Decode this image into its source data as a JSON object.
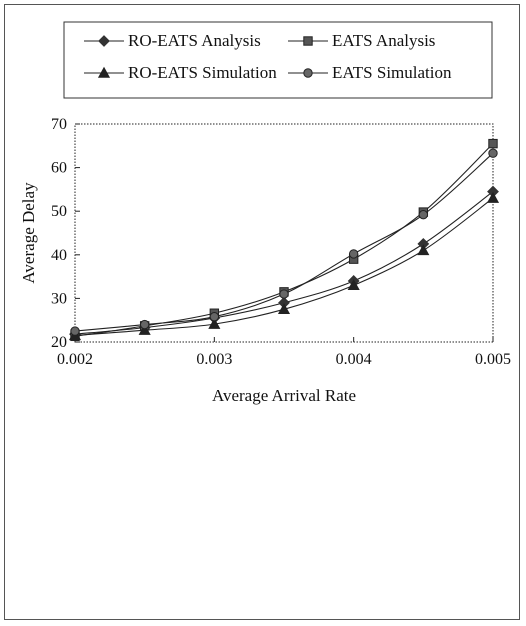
{
  "chart_data": {
    "type": "line",
    "title": "",
    "xlabel": "Average Arrival Rate",
    "ylabel": "Average Delay",
    "x": [
      0.002,
      0.0025,
      0.003,
      0.0035,
      0.004,
      0.0045,
      0.005
    ],
    "x_tick_labels": [
      "0.002",
      "0.003",
      "0.004",
      "0.005"
    ],
    "x_ticks": [
      0.002,
      0.003,
      0.004,
      0.005
    ],
    "y_tick_labels": [
      "20",
      "30",
      "40",
      "50",
      "60",
      "70"
    ],
    "y_ticks": [
      20,
      30,
      40,
      50,
      60,
      70
    ],
    "xlim": [
      0.002,
      0.005
    ],
    "ylim": [
      20,
      70
    ],
    "grid": false,
    "legend_placement": "top (above plot, boxed, 2 columns)",
    "series": [
      {
        "name": "RO-EATS Analysis",
        "marker": "diamond",
        "values": [
          21.8,
          23.3,
          25.5,
          29.0,
          34.0,
          42.5,
          54.5
        ]
      },
      {
        "name": "EATS Analysis",
        "marker": "square",
        "values": [
          21.3,
          23.7,
          26.6,
          31.5,
          39.0,
          49.8,
          65.5
        ]
      },
      {
        "name": "RO-EATS Simulation",
        "marker": "triangle",
        "values": [
          21.5,
          22.7,
          24.1,
          27.5,
          33.0,
          41.0,
          53.0
        ]
      },
      {
        "name": "EATS Simulation",
        "marker": "circle",
        "values": [
          22.5,
          24.0,
          25.8,
          31.0,
          40.2,
          49.2,
          63.3
        ]
      }
    ]
  }
}
